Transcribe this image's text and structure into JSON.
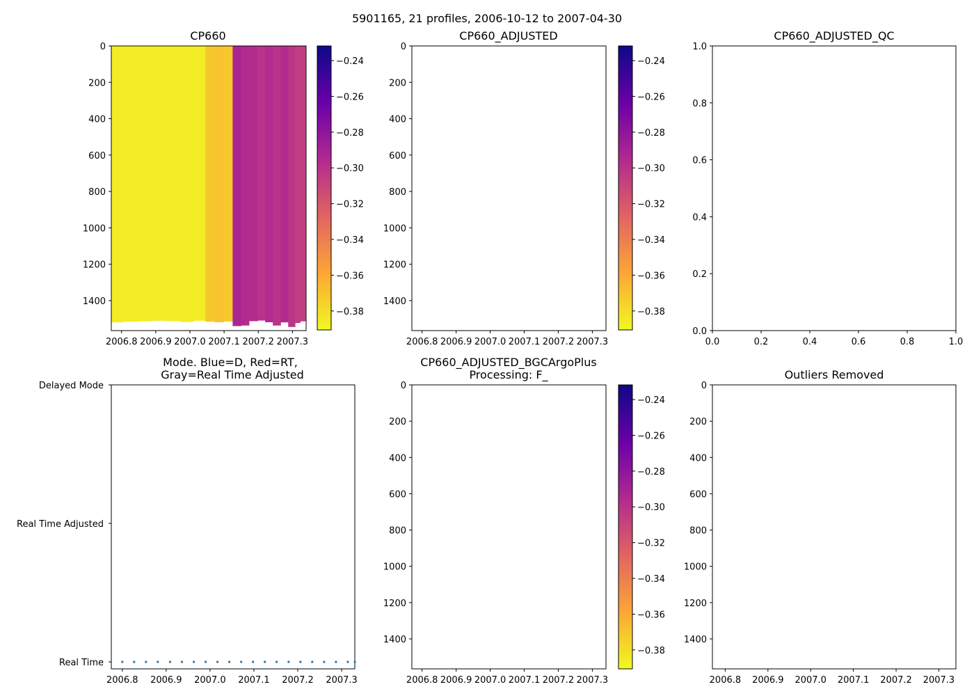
{
  "figure": {
    "title": "5901165, 21 profiles, 2006-10-12 to 2007-04-30"
  },
  "colormap": {
    "name": "plasma_r",
    "stops": [
      "#0d0887",
      "#6a00a8",
      "#b12a90",
      "#e16462",
      "#fca636",
      "#f0f921"
    ]
  },
  "chart_data": [
    {
      "id": "cp660",
      "type": "heatmap",
      "title": "CP660",
      "x_ticks": [
        "2006.8",
        "2006.9",
        "2007.0",
        "2007.1",
        "2007.2",
        "2007.3"
      ],
      "y_ticks": [
        "0",
        "200",
        "400",
        "600",
        "800",
        "1000",
        "1200",
        "1400"
      ],
      "xlim": [
        2006.77,
        2007.34
      ],
      "ylim": [
        1565,
        0
      ],
      "colorbar_ticks": [
        "−0.24",
        "−0.26",
        "−0.28",
        "−0.30",
        "−0.32",
        "−0.34",
        "−0.36",
        "−0.38"
      ],
      "clim": [
        -0.3906,
        -0.2318
      ],
      "profiles": [
        {
          "t": 2006.775,
          "max_depth": 1520,
          "value": -0.386
        },
        {
          "t": 2006.83,
          "max_depth": 1516,
          "value": -0.386
        },
        {
          "t": 2006.865,
          "max_depth": 1514,
          "value": -0.386
        },
        {
          "t": 2006.91,
          "max_depth": 1511,
          "value": -0.386
        },
        {
          "t": 2006.95,
          "max_depth": 1513,
          "value": -0.386
        },
        {
          "t": 2006.99,
          "max_depth": 1517,
          "value": -0.386
        },
        {
          "t": 2007.03,
          "max_depth": 1511,
          "value": -0.386
        },
        {
          "t": 2007.06,
          "max_depth": 1516,
          "value": -0.372
        },
        {
          "t": 2007.085,
          "max_depth": 1519,
          "value": -0.37
        },
        {
          "t": 2007.11,
          "max_depth": 1515,
          "value": -0.372
        },
        {
          "t": 2007.14,
          "max_depth": 1540,
          "value": -0.292
        },
        {
          "t": 2007.16,
          "max_depth": 1537,
          "value": -0.296
        },
        {
          "t": 2007.185,
          "max_depth": 1513,
          "value": -0.296
        },
        {
          "t": 2007.21,
          "max_depth": 1510,
          "value": -0.3
        },
        {
          "t": 2007.23,
          "max_depth": 1519,
          "value": -0.296
        },
        {
          "t": 2007.255,
          "max_depth": 1537,
          "value": -0.3
        },
        {
          "t": 2007.275,
          "max_depth": 1520,
          "value": -0.296
        },
        {
          "t": 2007.3,
          "max_depth": 1545,
          "value": -0.302
        },
        {
          "t": 2007.315,
          "max_depth": 1523,
          "value": -0.306
        },
        {
          "t": 2007.33,
          "max_depth": 1514,
          "value": -0.306
        }
      ]
    },
    {
      "id": "cp660_adjusted",
      "type": "heatmap",
      "title": "CP660_ADJUSTED",
      "x_ticks": [
        "2006.8",
        "2006.9",
        "2007.0",
        "2007.1",
        "2007.2",
        "2007.3"
      ],
      "y_ticks": [
        "0",
        "200",
        "400",
        "600",
        "800",
        "1000",
        "1200",
        "1400"
      ],
      "colorbar_ticks": [
        "−0.24",
        "−0.26",
        "−0.28",
        "−0.30",
        "−0.32",
        "−0.34",
        "−0.36",
        "−0.38"
      ],
      "profiles": []
    },
    {
      "id": "cp660_adjusted_qc",
      "type": "scatter",
      "title": "CP660_ADJUSTED_QC",
      "x_ticks": [
        "0.0",
        "0.2",
        "0.4",
        "0.6",
        "0.8",
        "1.0"
      ],
      "y_ticks": [
        "0.0",
        "0.2",
        "0.4",
        "0.6",
        "0.8",
        "1.0"
      ],
      "xlim": [
        0,
        1
      ],
      "ylim": [
        0,
        1
      ],
      "points": []
    },
    {
      "id": "mode",
      "type": "scatter",
      "title_line1": "Mode. Blue=D, Red=RT,",
      "title_line2": "Gray=Real Time Adjusted",
      "x_ticks": [
        "2006.8",
        "2006.9",
        "2007.0",
        "2007.1",
        "2007.2",
        "2007.3"
      ],
      "y_ticks": [
        "Delayed Mode",
        "Real Time Adjusted",
        "Real Time"
      ],
      "xlim": [
        2006.775,
        2007.33
      ],
      "point_times": [
        2006.8,
        2006.827,
        2006.854,
        2006.881,
        2006.909,
        2006.936,
        2006.963,
        2006.99,
        2007.017,
        2007.044,
        2007.071,
        2007.098,
        2007.125,
        2007.152,
        2007.179,
        2007.206,
        2007.233,
        2007.26,
        2007.287,
        2007.314,
        2007.33
      ],
      "point_mode": "Real Time"
    },
    {
      "id": "bgc",
      "type": "heatmap",
      "title_line1": "CP660_ADJUSTED_BGCArgoPlus",
      "title_line2": "Processing: F_",
      "x_ticks": [
        "2006.8",
        "2006.9",
        "2007.0",
        "2007.1",
        "2007.2",
        "2007.3"
      ],
      "y_ticks": [
        "0",
        "200",
        "400",
        "600",
        "800",
        "1000",
        "1200",
        "1400"
      ],
      "colorbar_ticks": [
        "−0.24",
        "−0.26",
        "−0.28",
        "−0.30",
        "−0.32",
        "−0.34",
        "−0.36",
        "−0.38"
      ],
      "profiles": []
    },
    {
      "id": "outliers",
      "type": "scatter",
      "title": "Outliers Removed",
      "x_ticks": [
        "2006.8",
        "2006.9",
        "2007.0",
        "2007.1",
        "2007.2",
        "2007.3"
      ],
      "y_ticks": [
        "0",
        "200",
        "400",
        "600",
        "800",
        "1000",
        "1200",
        "1400"
      ],
      "points": []
    }
  ]
}
